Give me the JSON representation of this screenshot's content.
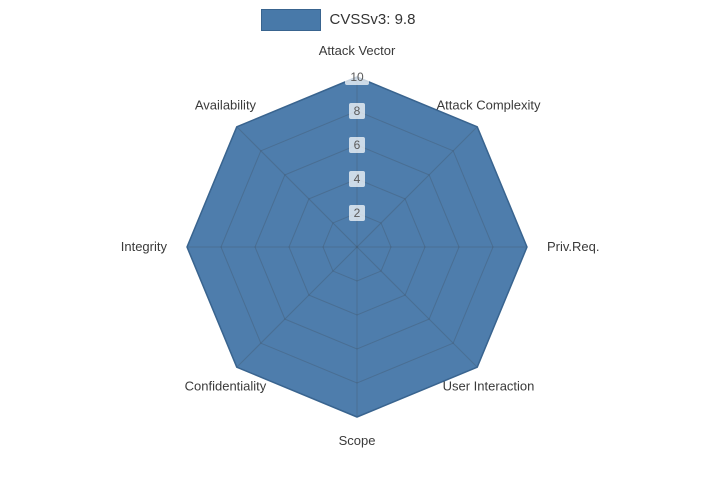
{
  "legend": {
    "label": "CVSSv3: 9.8",
    "swatch_color": "#4879a9",
    "swatch_border": "#39648f"
  },
  "chart_data": {
    "type": "radar",
    "categories": [
      "Attack Vector",
      "Attack Complexity",
      "Priv.Req.",
      "User Interaction",
      "Scope",
      "Confidentiality",
      "Integrity",
      "Availability"
    ],
    "series": [
      {
        "name": "CVSSv3: 9.8",
        "values": [
          10,
          10,
          10,
          10,
          10,
          10,
          10,
          10
        ]
      }
    ],
    "ticks": [
      2,
      4,
      6,
      8,
      10
    ],
    "range": [
      0,
      10
    ],
    "fill_color": "#4879a9",
    "line_color": "#39648f",
    "grid_color": "rgba(60,60,60,0.22)",
    "tick_text_color": "#5a5a5a",
    "tick_box_color": "rgba(255,255,255,0.72)",
    "axis_label_color": "#3a3a3a",
    "legend_position": "top",
    "grid": true
  }
}
